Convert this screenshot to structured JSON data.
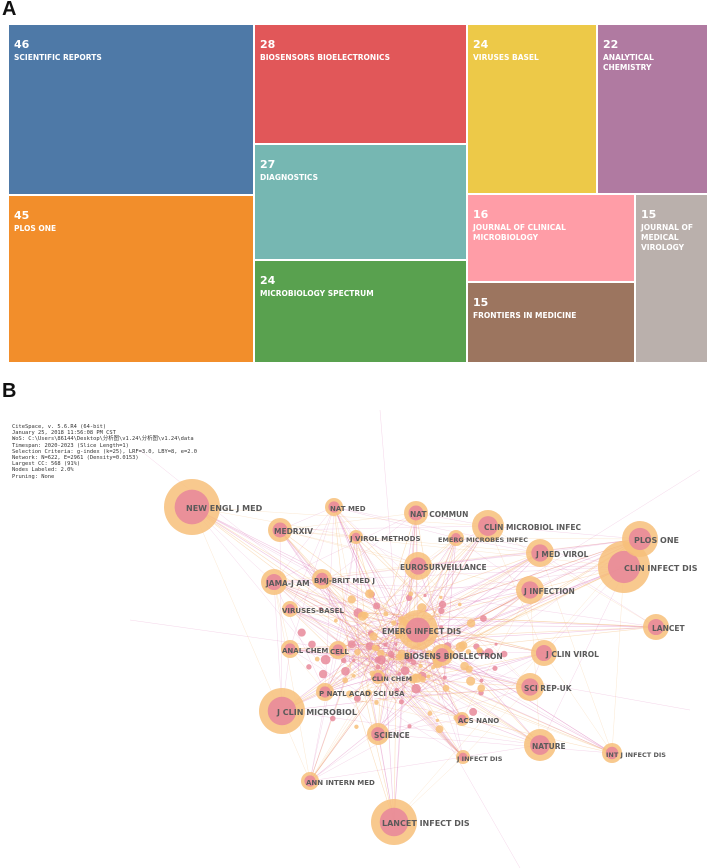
{
  "panel_a_label": "A",
  "panel_b_label": "B",
  "colors": {
    "blue": "#4e79a7",
    "orange": "#f28e2b",
    "red": "#e15759",
    "teal": "#76b7b2",
    "green": "#59a14f",
    "yellow": "#edc948",
    "purple": "#b07aa1",
    "pink": "#ff9da7",
    "brown": "#9c755f",
    "gray": "#bab0ac",
    "node_outer": "#f7c07a",
    "node_inner": "#e88a9a",
    "edge_pink": "#d35aa8",
    "edge_orange": "#f0a24a"
  },
  "chart_data": [
    {
      "type": "treemap",
      "items": [
        {
          "label": "SCIENTIFIC REPORTS",
          "value": 46,
          "color": "#4e79a7"
        },
        {
          "label": "PLOS ONE",
          "value": 45,
          "color": "#f28e2b"
        },
        {
          "label": "BIOSENSORS BIOELECTRONICS",
          "value": 28,
          "color": "#e15759"
        },
        {
          "label": "DIAGNOSTICS",
          "value": 27,
          "color": "#76b7b2"
        },
        {
          "label": "MICROBIOLOGY SPECTRUM",
          "value": 24,
          "color": "#59a14f"
        },
        {
          "label": "VIRUSES BASEL",
          "value": 24,
          "color": "#edc948"
        },
        {
          "label": "ANALYTICAL CHEMISTRY",
          "value": 22,
          "color": "#b07aa1"
        },
        {
          "label": "JOURNAL OF CLINICAL MICROBIOLOGY",
          "value": 16,
          "color": "#ff9da7"
        },
        {
          "label": "FRONTIERS IN MEDICINE",
          "value": 15,
          "color": "#9c755f"
        },
        {
          "label": "JOURNAL OF MEDICAL VIROLOGY",
          "value": 15,
          "color": "#bab0ac"
        }
      ]
    },
    {
      "type": "network",
      "nodes": [
        {
          "label": "CLIN INFECT DIS"
        },
        {
          "label": "NEW ENGL J MED"
        },
        {
          "label": "J CLIN MICROBIOL"
        },
        {
          "label": "LANCET INFECT DIS"
        },
        {
          "label": "PLOS ONE"
        },
        {
          "label": "NATURE"
        },
        {
          "label": "EMERG INFECT DIS"
        },
        {
          "label": "SCI REP-UK"
        },
        {
          "label": "J INFECTION"
        },
        {
          "label": "J CLIN VIROL"
        },
        {
          "label": "LANCET"
        },
        {
          "label": "CLIN MICROBIOL INFEC"
        },
        {
          "label": "J MED VIROL"
        },
        {
          "label": "NAT COMMUN"
        },
        {
          "label": "MEDRXIV"
        },
        {
          "label": "JAMA-J AM"
        },
        {
          "label": "BMJ-BRIT MED J"
        },
        {
          "label": "EUROSURVEILLANCE"
        },
        {
          "label": "SCIENCE"
        },
        {
          "label": "NAT MED"
        },
        {
          "label": "J VIROL METHODS"
        },
        {
          "label": "EMERG MICROBES INFEC"
        },
        {
          "label": "VIRUSES-BASEL"
        },
        {
          "label": "ANAL CHEM"
        },
        {
          "label": "CELL"
        },
        {
          "label": "BIOSENS BIOELECTRON"
        },
        {
          "label": "CLIN CHEM"
        },
        {
          "label": "P NATL ACAD SCI USA"
        },
        {
          "label": "ACS NANO"
        },
        {
          "label": "INT J INFECT DIS"
        },
        {
          "label": "J INFECT DIS"
        },
        {
          "label": "ANN INTERN MED"
        }
      ]
    }
  ],
  "citespace_info": [
    "CiteSpace, v. 5.6.R4 (64-bit)",
    "January 25, 2018 11:56:08 PM CST",
    "WoS: C:\\Users\\86144\\Desktop\\分析图\\v1.24\\分析图\\v1.24\\data",
    "Timespan: 2020-2023 (Slice Length=1)",
    "Selection Criteria: g-index (k=25), LRF=3.0, LBY=8, e=2.0",
    "Network: N=622, E=2961 (Density=0.0153)",
    "Largest CC: 568 (91%)",
    "Nodes Labeled: 2.0%",
    "Pruning: None"
  ]
}
